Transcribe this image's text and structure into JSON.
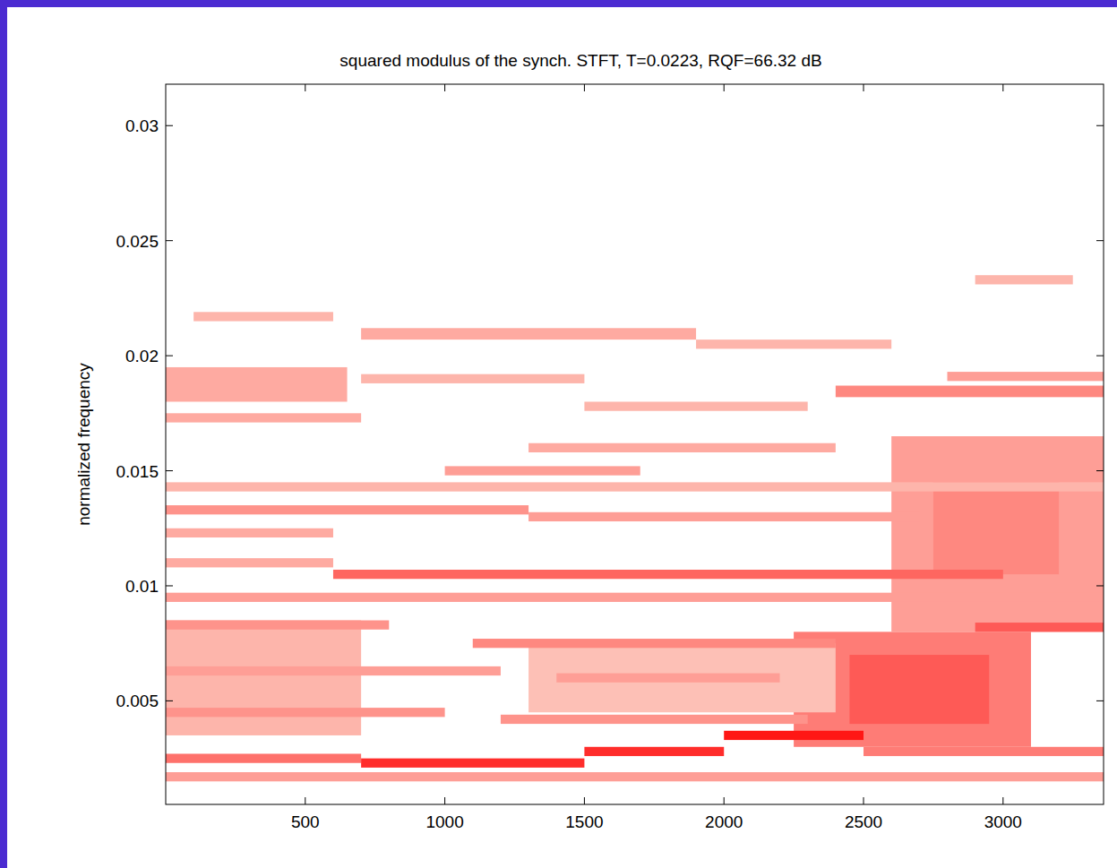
{
  "chart_data": {
    "type": "heatmap",
    "title": "squared modulus of the synch. STFT, T=0.0223, RQF=66.32 dB",
    "y_label": "normalized frequency",
    "xlim": [
      0,
      3360
    ],
    "xticks": [
      500,
      1000,
      1500,
      2000,
      2500,
      3000
    ],
    "ylim": [
      0.0005,
      0.0318
    ],
    "yticks": [
      0.005,
      0.01,
      0.015,
      0.02,
      0.025,
      0.03
    ],
    "color": "#ff0000",
    "clim": [
      0,
      1
    ],
    "cells": [
      [
        2250,
        3100,
        0.003,
        0.008,
        0.45
      ],
      [
        2450,
        2950,
        0.004,
        0.007,
        0.6
      ],
      [
        2600,
        3360,
        0.008,
        0.0165,
        0.3
      ],
      [
        2750,
        3200,
        0.0105,
        0.0145,
        0.4
      ],
      [
        0,
        650,
        0.018,
        0.0195,
        0.25
      ],
      [
        0,
        700,
        0.0035,
        0.0085,
        0.2
      ],
      [
        1300,
        2400,
        0.0045,
        0.0075,
        0.15
      ],
      [
        0,
        3360,
        0.0015,
        0.0019,
        0.3
      ],
      [
        0,
        700,
        0.0023,
        0.0027,
        0.5
      ],
      [
        700,
        1500,
        0.0021,
        0.0025,
        0.8
      ],
      [
        1500,
        2000,
        0.0026,
        0.003,
        0.8
      ],
      [
        2000,
        2500,
        0.0033,
        0.0037,
        0.9
      ],
      [
        2500,
        3360,
        0.0026,
        0.003,
        0.45
      ],
      [
        700,
        1900,
        0.0207,
        0.0212,
        0.25
      ],
      [
        1900,
        2600,
        0.0203,
        0.0207,
        0.2
      ],
      [
        2400,
        3360,
        0.0182,
        0.0187,
        0.4
      ],
      [
        2800,
        3360,
        0.0189,
        0.0193,
        0.3
      ],
      [
        0,
        700,
        0.0171,
        0.0175,
        0.25
      ],
      [
        1000,
        1700,
        0.0148,
        0.0152,
        0.3
      ],
      [
        1300,
        2400,
        0.0158,
        0.0162,
        0.25
      ],
      [
        0,
        1300,
        0.0131,
        0.0135,
        0.35
      ],
      [
        1300,
        2700,
        0.0128,
        0.0132,
        0.3
      ],
      [
        0,
        600,
        0.0121,
        0.0125,
        0.25
      ],
      [
        600,
        3000,
        0.0103,
        0.0107,
        0.55
      ],
      [
        0,
        3360,
        0.0093,
        0.0097,
        0.3
      ],
      [
        0,
        800,
        0.0081,
        0.0085,
        0.35
      ],
      [
        1100,
        2400,
        0.0073,
        0.0077,
        0.4
      ],
      [
        2900,
        3360,
        0.008,
        0.0084,
        0.6
      ],
      [
        0,
        1200,
        0.0061,
        0.0065,
        0.3
      ],
      [
        1400,
        2200,
        0.0058,
        0.0062,
        0.3
      ],
      [
        0,
        1000,
        0.0043,
        0.0047,
        0.35
      ],
      [
        1200,
        2300,
        0.004,
        0.0044,
        0.35
      ],
      [
        2900,
        3250,
        0.0231,
        0.0235,
        0.2
      ],
      [
        100,
        600,
        0.0215,
        0.0219,
        0.2
      ],
      [
        0,
        3360,
        0.0141,
        0.0145,
        0.2
      ],
      [
        0,
        600,
        0.0108,
        0.0112,
        0.25
      ],
      [
        700,
        1500,
        0.0188,
        0.0192,
        0.2
      ],
      [
        1500,
        2300,
        0.0176,
        0.018,
        0.2
      ]
    ]
  }
}
